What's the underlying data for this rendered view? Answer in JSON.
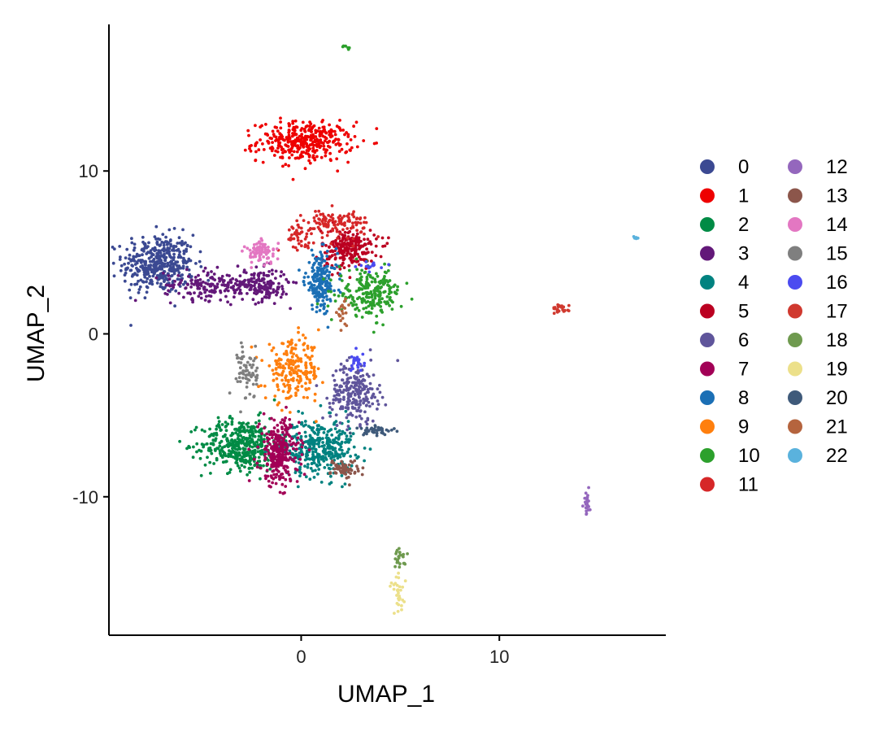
{
  "chart_data": {
    "type": "scatter",
    "title": "",
    "xlabel": "UMAP_1",
    "ylabel": "UMAP_2",
    "xlim": [
      -9.7,
      18.4
    ],
    "ylim": [
      -18.5,
      19.0
    ],
    "xticks": [
      0,
      10
    ],
    "xtick_labels": [
      "0",
      "10"
    ],
    "yticks": [
      10,
      0,
      -10
    ],
    "ytick_labels": [
      "10",
      "0",
      "-10"
    ],
    "grid": false,
    "legend_position": "right",
    "series": [
      {
        "name": "0",
        "color": "#3B4992",
        "clusters": [
          {
            "x": -7.2,
            "y": 4.3,
            "sx": 0.9,
            "sy": 0.9,
            "n": 420
          }
        ]
      },
      {
        "name": "1",
        "color": "#EE0000",
        "clusters": [
          {
            "x": 0.2,
            "y": 11.8,
            "sx": 1.2,
            "sy": 0.6,
            "n": 360
          }
        ]
      },
      {
        "name": "2",
        "color": "#008B45",
        "clusters": [
          {
            "x": -3.0,
            "y": -6.8,
            "sx": 1.0,
            "sy": 0.8,
            "n": 420
          }
        ]
      },
      {
        "name": "3",
        "color": "#631879",
        "clusters": [
          {
            "x": -4.5,
            "y": 3.0,
            "sx": 1.2,
            "sy": 0.45,
            "n": 170
          },
          {
            "x": -2.0,
            "y": 3.0,
            "sx": 0.7,
            "sy": 0.5,
            "n": 160
          }
        ]
      },
      {
        "name": "4",
        "color": "#008280",
        "clusters": [
          {
            "x": 0.9,
            "y": -7.0,
            "sx": 0.9,
            "sy": 0.9,
            "n": 360
          }
        ]
      },
      {
        "name": "5",
        "color": "#BB0021",
        "clusters": [
          {
            "x": 2.4,
            "y": 5.2,
            "sx": 0.7,
            "sy": 0.6,
            "n": 220
          }
        ]
      },
      {
        "name": "6",
        "color": "#5F559B",
        "clusters": [
          {
            "x": 2.7,
            "y": -3.6,
            "sx": 0.6,
            "sy": 0.9,
            "n": 230
          }
        ]
      },
      {
        "name": "7",
        "color": "#A20056",
        "clusters": [
          {
            "x": -1.1,
            "y": -7.3,
            "sx": 0.5,
            "sy": 1.0,
            "n": 280
          }
        ]
      },
      {
        "name": "8",
        "color": "#1B6FB5",
        "clusters": [
          {
            "x": 1.0,
            "y": 3.2,
            "sx": 0.4,
            "sy": 0.9,
            "n": 200
          }
        ]
      },
      {
        "name": "9",
        "color": "#FF7F0E",
        "clusters": [
          {
            "x": -0.4,
            "y": -2.3,
            "sx": 0.7,
            "sy": 0.9,
            "n": 220
          }
        ]
      },
      {
        "name": "10",
        "color": "#2CA02C",
        "clusters": [
          {
            "x": 3.5,
            "y": 2.5,
            "sx": 0.8,
            "sy": 0.7,
            "n": 220
          },
          {
            "x": 2.2,
            "y": 17.6,
            "sx": 0.1,
            "sy": 0.1,
            "n": 6
          }
        ]
      },
      {
        "name": "11",
        "color": "#D62728",
        "clusters": [
          {
            "x": 1.8,
            "y": 6.8,
            "sx": 0.8,
            "sy": 0.4,
            "n": 120
          },
          {
            "x": -0.2,
            "y": 6.0,
            "sx": 0.4,
            "sy": 0.35,
            "n": 40
          }
        ]
      },
      {
        "name": "12",
        "color": "#9467BD",
        "clusters": [
          {
            "x": 14.4,
            "y": -10.3,
            "sx": 0.1,
            "sy": 0.45,
            "n": 25
          }
        ]
      },
      {
        "name": "13",
        "color": "#8C564B",
        "clusters": [
          {
            "x": 2.2,
            "y": -8.3,
            "sx": 0.35,
            "sy": 0.3,
            "n": 60
          }
        ]
      },
      {
        "name": "14",
        "color": "#E377C2",
        "clusters": [
          {
            "x": -2.0,
            "y": 5.0,
            "sx": 0.4,
            "sy": 0.35,
            "n": 80
          }
        ]
      },
      {
        "name": "15",
        "color": "#7F7F7F",
        "clusters": [
          {
            "x": -2.7,
            "y": -2.3,
            "sx": 0.25,
            "sy": 0.9,
            "n": 70
          }
        ]
      },
      {
        "name": "16",
        "color": "#4B4BF0",
        "clusters": [
          {
            "x": 2.8,
            "y": -1.7,
            "sx": 0.2,
            "sy": 0.3,
            "n": 25
          },
          {
            "x": 3.5,
            "y": 4.2,
            "sx": 0.3,
            "sy": 0.15,
            "n": 15
          }
        ]
      },
      {
        "name": "17",
        "color": "#D0392F",
        "clusters": [
          {
            "x": 13.1,
            "y": 1.5,
            "sx": 0.2,
            "sy": 0.15,
            "n": 25
          }
        ]
      },
      {
        "name": "18",
        "color": "#6F9A4F",
        "clusters": [
          {
            "x": 5.0,
            "y": -13.8,
            "sx": 0.2,
            "sy": 0.3,
            "n": 25
          }
        ]
      },
      {
        "name": "19",
        "color": "#ECE08A",
        "clusters": [
          {
            "x": 4.9,
            "y": -16.0,
            "sx": 0.2,
            "sy": 0.6,
            "n": 30
          }
        ]
      },
      {
        "name": "20",
        "color": "#3F5A7A",
        "clusters": [
          {
            "x": 3.8,
            "y": -5.9,
            "sx": 0.5,
            "sy": 0.15,
            "n": 40
          }
        ]
      },
      {
        "name": "21",
        "color": "#B5643E",
        "clusters": [
          {
            "x": 2.1,
            "y": 1.1,
            "sx": 0.15,
            "sy": 0.5,
            "n": 20
          }
        ]
      },
      {
        "name": "22",
        "color": "#5AB2DD",
        "clusters": [
          {
            "x": 16.9,
            "y": 5.9,
            "sx": 0.1,
            "sy": 0.05,
            "n": 5
          }
        ]
      }
    ]
  }
}
